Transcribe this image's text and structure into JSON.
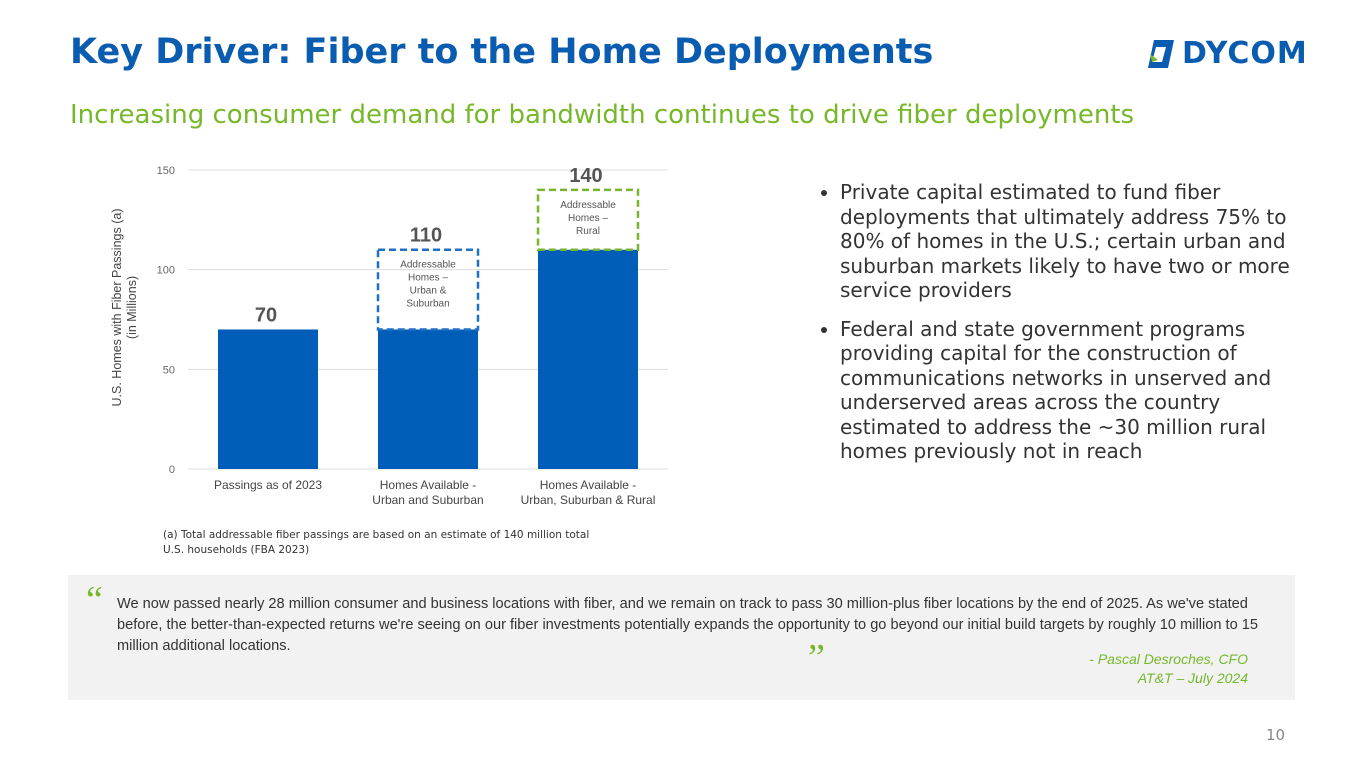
{
  "header": {
    "title": "Key Driver: Fiber to the Home Deployments",
    "subtitle": "Increasing consumer demand for bandwidth continues to drive fiber deployments",
    "logo": "DYCOM"
  },
  "chart_data": {
    "type": "bar",
    "ylabel": [
      "U.S. Homes with Fiber Passings (a)",
      "(in Millions)"
    ],
    "categories": [
      [
        "Passings as of 2023"
      ],
      [
        "Homes Available -",
        "Urban and Suburban"
      ],
      [
        "Homes Available -",
        "Urban, Suburban & Rural"
      ]
    ],
    "series": [
      {
        "color": "#005eb8",
        "values": [
          70,
          70,
          110
        ]
      },
      {
        "values": [
          null,
          40,
          30
        ],
        "colors": [
          null,
          "#1f6fc5",
          "#7ab32e"
        ],
        "labels": [
          null,
          [
            "Addressable",
            "Homes –",
            "Urban &",
            "Suburban"
          ],
          [
            "Addressable",
            "Homes –",
            "Rural"
          ]
        ]
      }
    ],
    "totals": [
      70,
      110,
      140
    ],
    "ylim": [
      0,
      150
    ],
    "yticks": [
      0,
      50,
      100,
      150
    ],
    "grid": true
  },
  "footnote": "(a) Total addressable fiber passings are based on an estimate of 140 million total U.S. households (FBA 2023)",
  "bullets": [
    "Private capital estimated to fund fiber deployments that ultimately address 75% to 80% of homes in the U.S.; certain urban and suburban markets likely to have two or more service providers",
    "Federal and state government programs providing capital for the construction of communications networks in unserved and underserved areas across the country estimated to address the ~30 million rural homes previously not in reach"
  ],
  "quote": {
    "text": "We now passed nearly 28 million consumer and business locations with fiber, and we remain on track to pass 30 million-plus fiber locations by the end of 2025. As we've stated before, the better-than-expected returns we're seeing on our fiber investments potentially expands the opportunity to go beyond our initial build targets by roughly 10 million to 15 million additional locations.",
    "author": "- Pascal Desroches, CFO",
    "source": "AT&T – July 2024"
  },
  "page_number": "10"
}
